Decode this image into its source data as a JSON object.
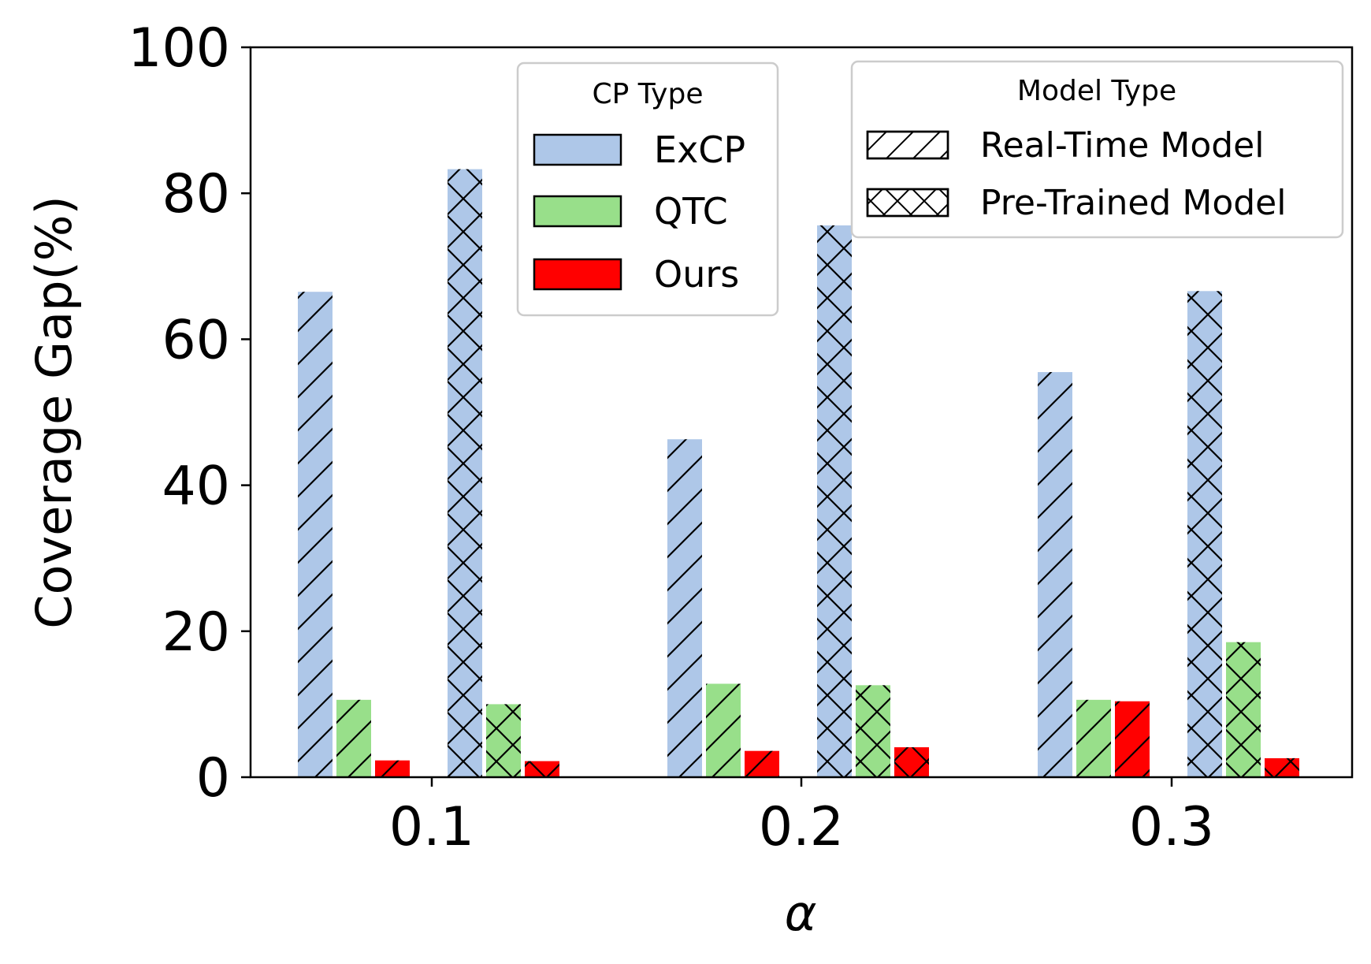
{
  "chart_data": {
    "type": "bar",
    "title": "",
    "xlabel": "α",
    "ylabel": "Coverage Gap(%)",
    "ylim": [
      0,
      100
    ],
    "yticks": [
      0,
      20,
      40,
      60,
      80,
      100
    ],
    "categories": [
      "0.1",
      "0.2",
      "0.3"
    ],
    "series": [
      {
        "name": "ExCP",
        "model": "Real-Time Model",
        "color": "#aec7e8",
        "hatch": "diagonal",
        "values": [
          66.5,
          46.3,
          55.5
        ]
      },
      {
        "name": "QTC",
        "model": "Real-Time Model",
        "color": "#98df8a",
        "hatch": "diagonal",
        "values": [
          10.6,
          12.8,
          10.6
        ]
      },
      {
        "name": "Ours",
        "model": "Real-Time Model",
        "color": "#ff0000",
        "hatch": "diagonal",
        "values": [
          2.3,
          3.6,
          10.4
        ]
      },
      {
        "name": "ExCP",
        "model": "Pre-Trained Model",
        "color": "#aec7e8",
        "hatch": "cross",
        "values": [
          83.3,
          75.6,
          66.6
        ]
      },
      {
        "name": "QTC",
        "model": "Pre-Trained Model",
        "color": "#98df8a",
        "hatch": "cross",
        "values": [
          10.0,
          12.6,
          18.5
        ]
      },
      {
        "name": "Ours",
        "model": "Pre-Trained Model",
        "color": "#ff0000",
        "hatch": "cross",
        "values": [
          2.2,
          4.1,
          2.6
        ]
      }
    ],
    "legend_cp": {
      "title": "CP Type",
      "placement": "top-center",
      "entries": [
        {
          "label": "ExCP",
          "color": "#aec7e8"
        },
        {
          "label": "QTC",
          "color": "#98df8a"
        },
        {
          "label": "Ours",
          "color": "#ff0000"
        }
      ]
    },
    "legend_model": {
      "title": "Model Type",
      "placement": "top-right",
      "entries": [
        {
          "label": "Real-Time Model",
          "hatch": "diagonal"
        },
        {
          "label": "Pre-Trained Model",
          "hatch": "cross"
        }
      ]
    }
  }
}
